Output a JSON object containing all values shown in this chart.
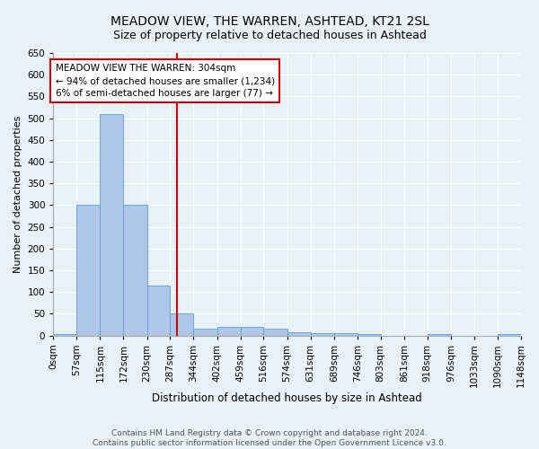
{
  "title": "MEADOW VIEW, THE WARREN, ASHTEAD, KT21 2SL",
  "subtitle": "Size of property relative to detached houses in Ashtead",
  "xlabel": "Distribution of detached houses by size in Ashtead",
  "ylabel": "Number of detached properties",
  "bin_edges": [
    0,
    57,
    115,
    172,
    230,
    287,
    344,
    402,
    459,
    516,
    574,
    631,
    689,
    746,
    803,
    861,
    918,
    976,
    1033,
    1090,
    1148
  ],
  "bar_heights": [
    4,
    300,
    510,
    300,
    115,
    50,
    15,
    20,
    20,
    15,
    8,
    5,
    5,
    3,
    0,
    0,
    3,
    0,
    0,
    3
  ],
  "bar_color": "#aec6e8",
  "bar_edge_color": "#5a9fd4",
  "vline_x": 304,
  "vline_color": "#cc0000",
  "annotation_text": "MEADOW VIEW THE WARREN: 304sqm\n← 94% of detached houses are smaller (1,234)\n6% of semi-detached houses are larger (77) →",
  "annotation_box_color": "white",
  "annotation_box_edge_color": "#cc0000",
  "ylim": [
    0,
    650
  ],
  "yticks": [
    0,
    50,
    100,
    150,
    200,
    250,
    300,
    350,
    400,
    450,
    500,
    550,
    600,
    650
  ],
  "background_color": "#e8f0f8",
  "plot_bg_color": "#e8f0f8",
  "footer_text": "Contains HM Land Registry data © Crown copyright and database right 2024.\nContains public sector information licensed under the Open Government Licence v3.0.",
  "title_fontsize": 10,
  "subtitle_fontsize": 9,
  "xlabel_fontsize": 8.5,
  "ylabel_fontsize": 8,
  "tick_fontsize": 7.5,
  "annotation_fontsize": 7.5,
  "footer_fontsize": 6.5
}
